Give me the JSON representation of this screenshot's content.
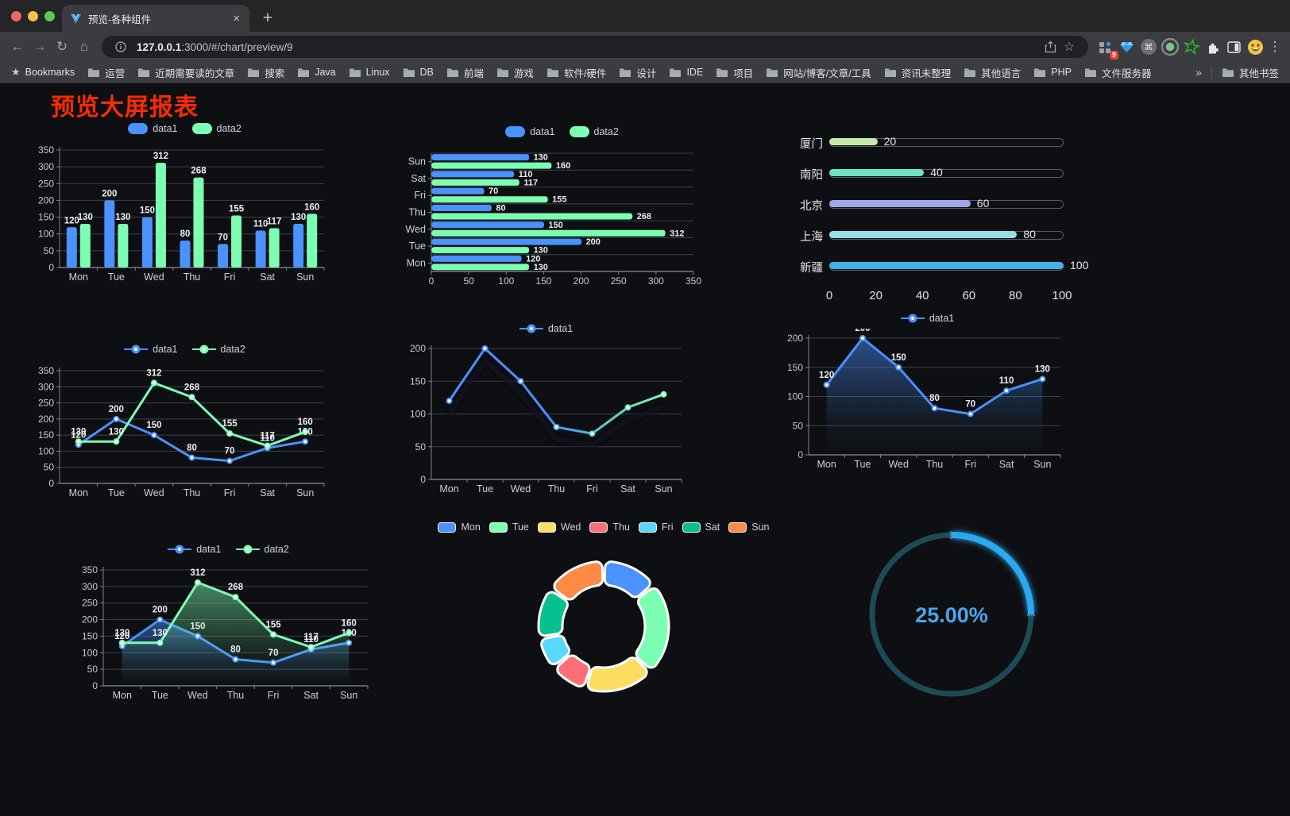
{
  "browser": {
    "tab": {
      "title": "预览-各种组件",
      "close_glyph": "×",
      "new_tab_glyph": "+"
    },
    "url": {
      "host": "127.0.0.1",
      "rest": ":3000/#/chart/preview/9"
    },
    "icons": {
      "back": "←",
      "forward": "→",
      "reload": "↻",
      "home": "⌂",
      "bookmark_star": "☆",
      "bookmarks_bar_star": "★",
      "menu": "⋮",
      "command": "⌘",
      "overflow": "»"
    },
    "extensions": {
      "badge": "9"
    },
    "bookmarks_bar": {
      "label": "Bookmarks",
      "folders": [
        "运营",
        "近期需要读的文章",
        "搜索",
        "Java",
        "Linux",
        "DB",
        "前端",
        "游戏",
        "软件/硬件",
        "设计",
        "IDE",
        "项目",
        "网站/博客/文章/工具",
        "资讯未整理",
        "其他语言",
        "PHP",
        "文件服务器"
      ],
      "other_bookmarks": "其他书签"
    }
  },
  "page": {
    "title": "预览大屏报表",
    "title_color": "#fb2b00",
    "background": "#0e0f12"
  },
  "chart_data": [
    {
      "id": "bar-vertical",
      "type": "bar",
      "legend_position": "top",
      "grid": true,
      "categories": [
        "Mon",
        "Tue",
        "Wed",
        "Thu",
        "Fri",
        "Sat",
        "Sun"
      ],
      "series": [
        {
          "name": "data1",
          "color": "#4992ff",
          "values": [
            120,
            200,
            150,
            80,
            70,
            110,
            130
          ]
        },
        {
          "name": "data2",
          "color": "#7cffb2",
          "values": [
            130,
            130,
            312,
            268,
            155,
            117,
            160
          ]
        }
      ],
      "ylim": [
        0,
        350
      ],
      "yticks": [
        0,
        50,
        100,
        150,
        200,
        250,
        300,
        350
      ],
      "show_labels": true
    },
    {
      "id": "bar-horizontal",
      "type": "bar",
      "orientation": "horizontal",
      "legend_position": "top",
      "categories": [
        "Mon",
        "Tue",
        "Wed",
        "Thu",
        "Fri",
        "Sat",
        "Sun"
      ],
      "series": [
        {
          "name": "data1",
          "color": "#4992ff",
          "values": [
            120,
            200,
            150,
            80,
            70,
            110,
            130
          ]
        },
        {
          "name": "data2",
          "color": "#7cffb2",
          "values": [
            130,
            130,
            312,
            268,
            155,
            117,
            160
          ]
        }
      ],
      "xlim": [
        0,
        350
      ],
      "xticks": [
        0,
        50,
        100,
        150,
        200,
        250,
        300,
        350
      ],
      "show_labels": true
    },
    {
      "id": "city-progress",
      "type": "bar",
      "subtype": "progress",
      "items": [
        {
          "label": "厦门",
          "value": 20,
          "color": "#c4ebad"
        },
        {
          "label": "南阳",
          "value": 40,
          "color": "#6be6c1"
        },
        {
          "label": "北京",
          "value": 60,
          "color": "#a0a7e6"
        },
        {
          "label": "上海",
          "value": 80,
          "color": "#96dee8"
        },
        {
          "label": "新疆",
          "value": 100,
          "color": "#3fb1e3"
        }
      ],
      "xlim": [
        0,
        100
      ],
      "xticks": [
        0,
        20,
        40,
        60,
        80,
        100
      ]
    },
    {
      "id": "line-two",
      "type": "line",
      "legend_position": "top",
      "categories": [
        "Mon",
        "Tue",
        "Wed",
        "Thu",
        "Fri",
        "Sat",
        "Sun"
      ],
      "series": [
        {
          "name": "data1",
          "color": "#4992ff",
          "values": [
            120,
            200,
            150,
            80,
            70,
            110,
            130
          ]
        },
        {
          "name": "data2",
          "color": "#7cffb2",
          "values": [
            130,
            130,
            312,
            268,
            155,
            117,
            160
          ]
        }
      ],
      "ylim": [
        0,
        350
      ],
      "yticks": [
        0,
        50,
        100,
        150,
        200,
        250,
        300,
        350
      ],
      "show_labels": true
    },
    {
      "id": "line-gradient",
      "type": "line",
      "legend_position": "top",
      "shadow": true,
      "categories": [
        "Mon",
        "Tue",
        "Wed",
        "Thu",
        "Fri",
        "Sat",
        "Sun"
      ],
      "series": [
        {
          "name": "data1",
          "color": "#4992ff",
          "gradient": [
            "#4992ff",
            "#7cffb2"
          ],
          "point_colors": [
            "#4992ff",
            "#4992ff",
            "#4992ff",
            "#53a8e8",
            "#5cc4cf",
            "#68e0b4",
            "#7cffb2"
          ],
          "values": [
            120,
            200,
            150,
            80,
            70,
            110,
            130
          ]
        }
      ],
      "ylim": [
        0,
        200
      ],
      "yticks": [
        0,
        50,
        100,
        150,
        200
      ],
      "show_labels": false
    },
    {
      "id": "area-single",
      "type": "area",
      "legend_position": "top",
      "categories": [
        "Mon",
        "Tue",
        "Wed",
        "Thu",
        "Fri",
        "Sat",
        "Sun"
      ],
      "series": [
        {
          "name": "data1",
          "color": "#4992ff",
          "values": [
            120,
            200,
            150,
            80,
            70,
            110,
            130
          ]
        }
      ],
      "ylim": [
        0,
        200
      ],
      "yticks": [
        0,
        50,
        100,
        150,
        200
      ],
      "show_labels": true
    },
    {
      "id": "area-two",
      "type": "area",
      "legend_position": "top",
      "categories": [
        "Mon",
        "Tue",
        "Wed",
        "Thu",
        "Fri",
        "Sat",
        "Sun"
      ],
      "series": [
        {
          "name": "data1",
          "color": "#4992ff",
          "values": [
            120,
            200,
            150,
            80,
            70,
            110,
            130
          ]
        },
        {
          "name": "data2",
          "color": "#7cffb2",
          "values": [
            130,
            130,
            312,
            268,
            155,
            117,
            160
          ]
        }
      ],
      "ylim": [
        0,
        350
      ],
      "yticks": [
        0,
        50,
        100,
        150,
        200,
        250,
        300,
        350
      ],
      "show_labels": true
    },
    {
      "id": "donut",
      "type": "pie",
      "legend_position": "top",
      "donut": true,
      "slices": [
        {
          "label": "Mon",
          "value": 120,
          "color": "#4992ff"
        },
        {
          "label": "Tue",
          "value": 200,
          "color": "#7cffb2"
        },
        {
          "label": "Wed",
          "value": 150,
          "color": "#fddd60"
        },
        {
          "label": "Thu",
          "value": 80,
          "color": "#ff6e76"
        },
        {
          "label": "Fri",
          "value": 70,
          "color": "#58d9f9"
        },
        {
          "label": "Sat",
          "value": 110,
          "color": "#05c091"
        },
        {
          "label": "Sun",
          "value": 130,
          "color": "#ff8a45"
        }
      ],
      "border_color": "#ffffff"
    },
    {
      "id": "gauge",
      "type": "gauge",
      "value": 25,
      "max": 100,
      "label": "25.00%",
      "color": "#2ba9f0",
      "track_color": "#1d4a57",
      "text_color": "#4ba5ea"
    }
  ]
}
